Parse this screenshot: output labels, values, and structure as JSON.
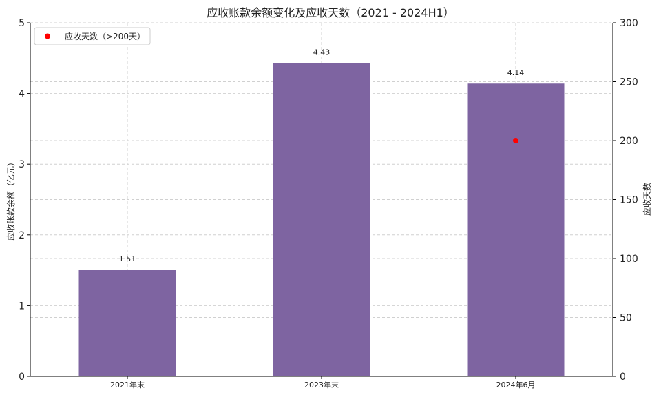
{
  "chart_data": {
    "type": "bar",
    "title": "应收账款余额变化及应收天数（2021 - 2024H1）",
    "categories": [
      "2021年末",
      "2023年末",
      "2024年6月"
    ],
    "values": [
      1.51,
      4.43,
      4.14
    ],
    "value_labels": [
      "1.51",
      "4.43",
      "4.14"
    ],
    "ylabel": "应收账款余额（亿元）",
    "ylim": [
      0,
      5
    ],
    "yticks": [
      "0",
      "1",
      "2",
      "3",
      "4",
      "5"
    ],
    "y2label": "应收天数",
    "y2lim": [
      0,
      300
    ],
    "y2ticks": [
      "0",
      "50",
      "100",
      "150",
      "200",
      "250",
      "300"
    ],
    "scatter_series": {
      "name": "应收天数（>200天）",
      "category": "2024年6月",
      "value": 200
    },
    "legend_position": "top-left",
    "grid": true,
    "bar_color": "#7e64a1",
    "point_color": "#ff0000"
  }
}
